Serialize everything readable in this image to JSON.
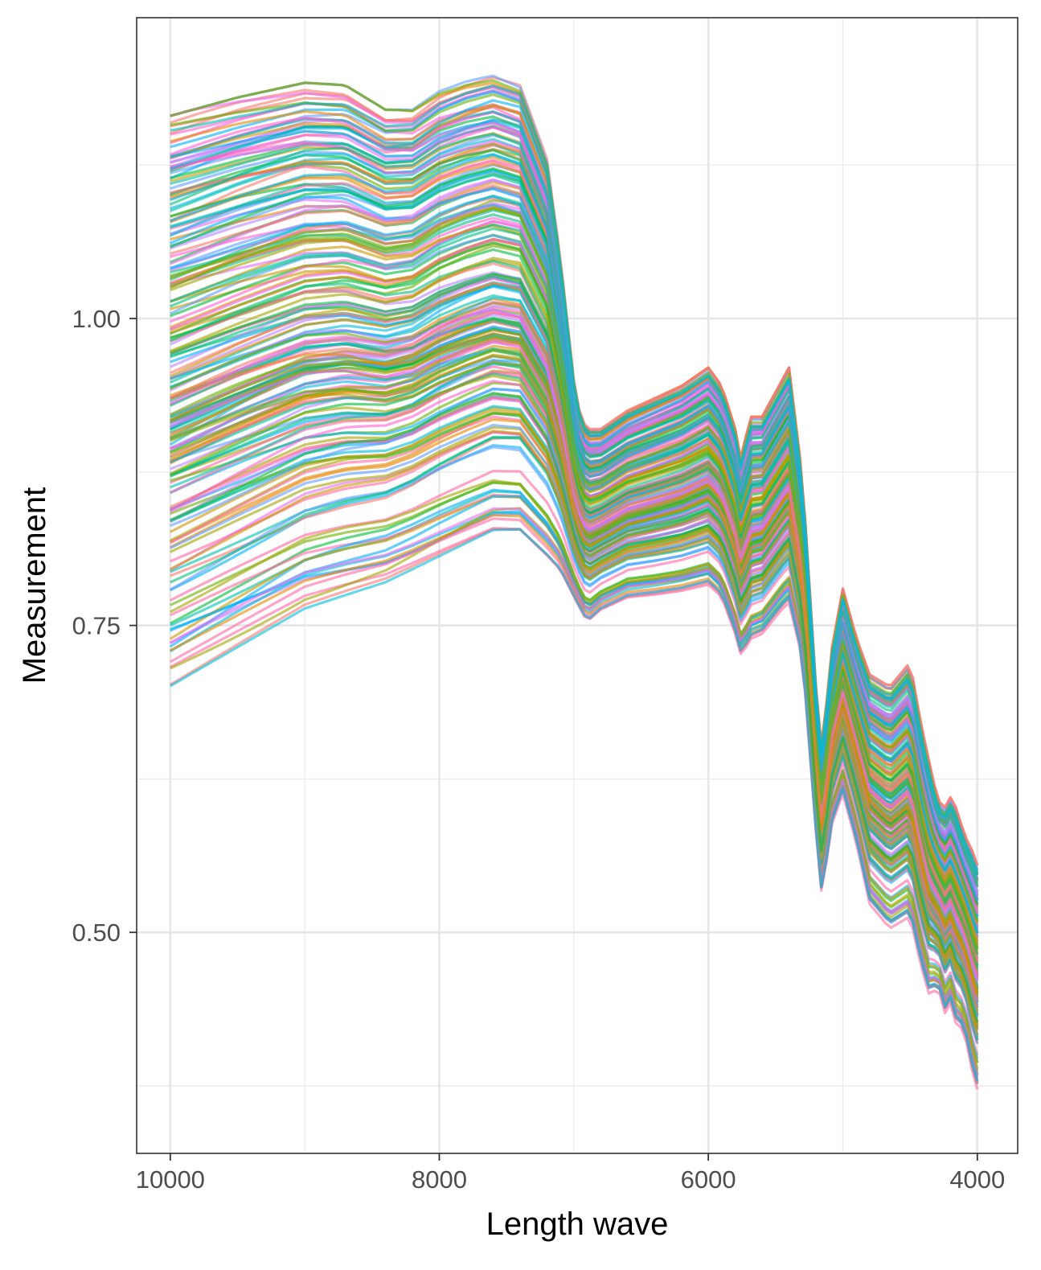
{
  "chart_data": {
    "type": "line",
    "title": "",
    "xlabel": "Length wave",
    "ylabel": "Measurement",
    "x_reversed": true,
    "xlim": [
      10250,
      3700
    ],
    "ylim": [
      0.32,
      1.245
    ],
    "x_ticks": [
      10000,
      8000,
      6000,
      4000
    ],
    "x_tick_labels": [
      "10000",
      "8000",
      "6000",
      "4000"
    ],
    "y_ticks": [
      0.5,
      0.75,
      1.0
    ],
    "y_tick_labels": [
      "0.50",
      "0.75",
      "1.00"
    ],
    "grid": true,
    "legend": "none",
    "series_count": 220,
    "palette": [
      "#F8766D",
      "#E58700",
      "#C99800",
      "#A3A500",
      "#6BB100",
      "#00BA38",
      "#00BF7D",
      "#00C0AF",
      "#00BCD8",
      "#00B0F6",
      "#619CFF",
      "#B983FF",
      "#E76BF3",
      "#FD61D1",
      "#FF67A4"
    ],
    "profile_x": [
      10000,
      9500,
      9000,
      8700,
      8400,
      8200,
      8000,
      7800,
      7600,
      7400,
      7200,
      7100,
      7000,
      6950,
      6900,
      6800,
      6600,
      6400,
      6200,
      6000,
      5900,
      5800,
      5750,
      5700,
      5600,
      5450,
      5400,
      5300,
      5200,
      5150,
      5100,
      5000,
      4900,
      4800,
      4650,
      4500,
      4420,
      4340,
      4300,
      4250,
      4200,
      4150,
      4100,
      4050,
      4000
    ],
    "profile_upper": [
      1.165,
      1.18,
      1.192,
      1.19,
      1.17,
      1.17,
      1.185,
      1.193,
      1.198,
      1.19,
      1.13,
      1.05,
      0.95,
      0.92,
      0.91,
      0.91,
      0.925,
      0.935,
      0.945,
      0.96,
      0.945,
      0.91,
      0.88,
      0.92,
      0.92,
      0.95,
      0.96,
      0.87,
      0.7,
      0.64,
      0.72,
      0.78,
      0.74,
      0.71,
      0.7,
      0.72,
      0.67,
      0.63,
      0.61,
      0.6,
      0.61,
      0.6,
      0.58,
      0.57,
      0.555
    ],
    "profile_lower": [
      0.7,
      0.73,
      0.76,
      0.77,
      0.78,
      0.79,
      0.8,
      0.81,
      0.82,
      0.82,
      0.8,
      0.79,
      0.77,
      0.76,
      0.75,
      0.76,
      0.77,
      0.772,
      0.775,
      0.78,
      0.77,
      0.74,
      0.72,
      0.735,
      0.74,
      0.76,
      0.765,
      0.72,
      0.58,
      0.52,
      0.58,
      0.61,
      0.57,
      0.52,
      0.5,
      0.51,
      0.47,
      0.44,
      0.46,
      0.43,
      0.44,
      0.42,
      0.42,
      0.39,
      0.37
    ]
  }
}
